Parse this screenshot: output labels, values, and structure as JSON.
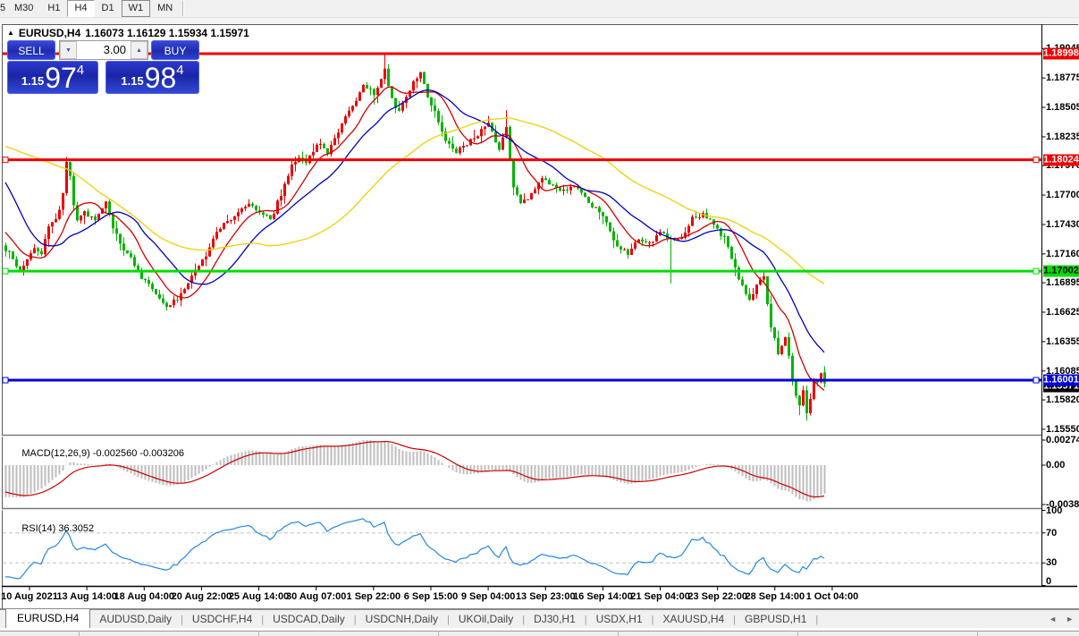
{
  "toolbar": {
    "clipped_button": "5",
    "timeframes": [
      "M30",
      "H1",
      "H4",
      "D1",
      "W1",
      "MN"
    ],
    "active": "H4",
    "framed": "W1"
  },
  "title": {
    "collapse_icon": "▲",
    "symbol_period": "EURUSD,H4",
    "ohlc": "1.16073 1.16129 1.15934 1.15971"
  },
  "trade_panel": {
    "sell_label": "SELL",
    "buy_label": "BUY",
    "volume": "3.00",
    "spinner_down": "▼",
    "spinner_up": "▲",
    "sell_price": {
      "prefix": "1.15",
      "big": "97",
      "sup": "4"
    },
    "buy_price": {
      "prefix": "1.15",
      "big": "98",
      "sup": "4"
    }
  },
  "price_axis": {
    "ticks": [
      "1.19045",
      "1.18775",
      "1.18505",
      "1.18235",
      "1.17970",
      "1.17700",
      "1.17430",
      "1.17160",
      "1.16895",
      "1.16625",
      "1.16355",
      "1.16085",
      "1.15820",
      "1.15550"
    ],
    "badges": [
      {
        "label": "1.18998",
        "price": 1.18998,
        "bg": "#ee0000",
        "fg": "#ffffff"
      },
      {
        "label": "1.18024",
        "price": 1.18024,
        "bg": "#ee0000",
        "fg": "#ffffff"
      },
      {
        "label": "1.17002",
        "price": 1.17002,
        "bg": "#00dd00",
        "fg": "#000000"
      },
      {
        "label": "1.16001",
        "price": 1.16001,
        "bg": "#0000dd",
        "fg": "#ffffff"
      }
    ],
    "current_badge": {
      "label": "1.15971",
      "price": 1.15971,
      "bg": "#000000",
      "fg": "#ffffff"
    }
  },
  "indicators": {
    "macd": {
      "label": "MACD(12,26,9)",
      "values": "-0.002560 -0.003206",
      "axis": [
        "0.002744",
        "0.00",
        "-0.003829"
      ]
    },
    "rsi": {
      "label": "RSI(14)",
      "value": "36.3052",
      "axis": [
        "100",
        "70",
        "30",
        "0"
      ]
    }
  },
  "time_axis": {
    "labels": [
      "10 Aug 2021",
      "13 Aug 14:00",
      "18 Aug 04:00",
      "20 Aug 22:00",
      "25 Aug 14:00",
      "30 Aug 07:00",
      "1 Sep 22:00",
      "6 Sep 15:00",
      "9 Sep 04:00",
      "13 Sep 23:00",
      "16 Sep 14:00",
      "21 Sep 04:00",
      "23 Sep 22:00",
      "28 Sep 14:00",
      "1 Oct 04:00"
    ]
  },
  "tabs": {
    "items": [
      "EURUSD,H4",
      "AUDUSD,Daily",
      "USDCHF,H4",
      "USDCAD,Daily",
      "USDCNH,Daily",
      "UKOil,Daily",
      "DJ30,H1",
      "USDX,H1",
      "XAUUSD,H4",
      "GBPUSD,H1"
    ],
    "active_index": 0,
    "scroll_left_icon": "◄",
    "scroll_right_icon": "►"
  },
  "chart_data": {
    "type": "candlestick",
    "symbol": "EURUSD",
    "period": "H4",
    "visible_range": {
      "start": "10 Aug 2021",
      "end": "1 Oct 04:00",
      "bars": 230
    },
    "price_range_visible": [
      1.155,
      1.1921
    ],
    "current_bar": {
      "open": 1.16073,
      "high": 1.16129,
      "low": 1.15934,
      "close": 1.15971
    },
    "hlines": [
      {
        "price": 1.18998,
        "color": "#ee0000",
        "width": 3,
        "anchors": false
      },
      {
        "price": 1.18024,
        "color": "#ee0000",
        "width": 3,
        "anchors": true
      },
      {
        "price": 1.17002,
        "color": "#00dd00",
        "width": 3,
        "anchors": true
      },
      {
        "price": 1.16001,
        "color": "#0000dd",
        "width": 3,
        "anchors": true
      }
    ],
    "moving_averages": [
      {
        "name": "fast",
        "period": 10,
        "color": "#d40000"
      },
      {
        "name": "mid",
        "period": 21,
        "color": "#0000c4"
      },
      {
        "name": "slow",
        "period": 55,
        "color": "#f0d000"
      }
    ],
    "macd": {
      "fast": 12,
      "slow": 26,
      "signal": 9,
      "main_value": -0.00256,
      "signal_value": -0.003206,
      "max": 0.002744,
      "min": -0.003829
    },
    "rsi": {
      "period": 14,
      "value": 36.3052,
      "levels": [
        70,
        30
      ]
    },
    "close_anchors": [
      [
        -60,
        1.179
      ],
      [
        -50,
        1.1772
      ],
      [
        -42,
        1.1808
      ],
      [
        -35,
        1.188
      ],
      [
        -30,
        1.1898
      ],
      [
        -25,
        1.1862
      ],
      [
        -20,
        1.184
      ],
      [
        -15,
        1.185
      ],
      [
        -10,
        1.176
      ],
      [
        -6,
        1.1742
      ],
      [
        -3,
        1.1728
      ],
      [
        -1,
        1.1722
      ],
      [
        0,
        1.172
      ],
      [
        2,
        1.1712
      ],
      [
        4,
        1.17
      ],
      [
        6,
        1.171
      ],
      [
        8,
        1.1722
      ],
      [
        10,
        1.1718
      ],
      [
        12,
        1.174
      ],
      [
        14,
        1.1748
      ],
      [
        16,
        1.177
      ],
      [
        17,
        1.1798
      ],
      [
        18,
        1.1786
      ],
      [
        19,
        1.1762
      ],
      [
        20,
        1.1748
      ],
      [
        22,
        1.1753
      ],
      [
        25,
        1.1746
      ],
      [
        28,
        1.1762
      ],
      [
        30,
        1.174
      ],
      [
        33,
        1.172
      ],
      [
        36,
        1.1706
      ],
      [
        39,
        1.169
      ],
      [
        42,
        1.168
      ],
      [
        45,
        1.1667
      ],
      [
        48,
        1.1675
      ],
      [
        51,
        1.169
      ],
      [
        53,
        1.17
      ],
      [
        56,
        1.1716
      ],
      [
        59,
        1.1738
      ],
      [
        62,
        1.1745
      ],
      [
        65,
        1.1752
      ],
      [
        68,
        1.1762
      ],
      [
        71,
        1.1755
      ],
      [
        74,
        1.1748
      ],
      [
        77,
        1.177
      ],
      [
        80,
        1.1796
      ],
      [
        82,
        1.1806
      ],
      [
        84,
        1.1798
      ],
      [
        86,
        1.1812
      ],
      [
        88,
        1.1818
      ],
      [
        90,
        1.1808
      ],
      [
        92,
        1.1822
      ],
      [
        94,
        1.1835
      ],
      [
        97,
        1.1852
      ],
      [
        100,
        1.1872
      ],
      [
        103,
        1.1862
      ],
      [
        106,
        1.1886
      ],
      [
        108,
        1.1858
      ],
      [
        110,
        1.1845
      ],
      [
        113,
        1.1868
      ],
      [
        116,
        1.1882
      ],
      [
        118,
        1.186
      ],
      [
        120,
        1.1848
      ],
      [
        123,
        1.182
      ],
      [
        126,
        1.181
      ],
      [
        129,
        1.1818
      ],
      [
        132,
        1.1825
      ],
      [
        135,
        1.1838
      ],
      [
        138,
        1.181
      ],
      [
        140,
        1.1832
      ],
      [
        142,
        1.1776
      ],
      [
        144,
        1.1762
      ],
      [
        147,
        1.177
      ],
      [
        150,
        1.1786
      ],
      [
        153,
        1.178
      ],
      [
        156,
        1.1774
      ],
      [
        159,
        1.1778
      ],
      [
        162,
        1.1768
      ],
      [
        165,
        1.1758
      ],
      [
        168,
        1.1745
      ],
      [
        171,
        1.1722
      ],
      [
        174,
        1.1716
      ],
      [
        177,
        1.173
      ],
      [
        180,
        1.1726
      ],
      [
        183,
        1.1735
      ],
      [
        186,
        1.1728
      ],
      [
        189,
        1.1732
      ],
      [
        192,
        1.1748
      ],
      [
        195,
        1.1752
      ],
      [
        198,
        1.1742
      ],
      [
        201,
        1.173
      ],
      [
        203,
        1.1712
      ],
      [
        204,
        1.1703
      ],
      [
        206,
        1.1686
      ],
      [
        208,
        1.1672
      ],
      [
        210,
        1.1688
      ],
      [
        212,
        1.1694
      ],
      [
        214,
        1.165
      ],
      [
        216,
        1.1625
      ],
      [
        218,
        1.164
      ],
      [
        220,
        1.16
      ],
      [
        222,
        1.1576
      ],
      [
        223,
        1.159
      ],
      [
        224,
        1.1572
      ],
      [
        225,
        1.1585
      ],
      [
        226,
        1.1598
      ],
      [
        227,
        1.16
      ],
      [
        228,
        1.1607
      ],
      [
        229,
        1.15971
      ]
    ],
    "wick_overrides": {
      "17": {
        "h": 1.1805
      },
      "45": {
        "l": 1.1664
      },
      "80": {
        "h": 1.1803
      },
      "82": {
        "h": 1.1807
      },
      "106": {
        "h": 1.19
      },
      "140": {
        "h": 1.1848
      },
      "142": {
        "l": 1.177
      },
      "186": {
        "l": 1.1689
      },
      "222": {
        "l": 1.1568
      },
      "224": {
        "l": 1.1563
      }
    },
    "colors": {
      "bull": "#ee0000",
      "bear": "#00b400",
      "macd_hist": "#bdbdbd",
      "macd_signal": "#cc0000",
      "rsi_line": "#2288e6",
      "level_dash": "#c0c0c0"
    }
  }
}
